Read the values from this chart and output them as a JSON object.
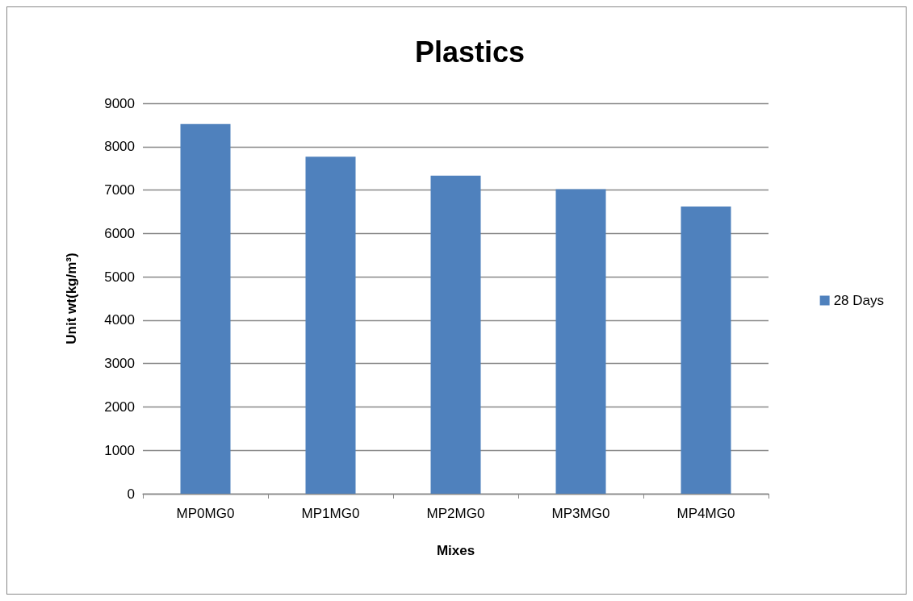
{
  "chart_data": {
    "type": "bar",
    "title": "Plastics",
    "xlabel": "Mixes",
    "ylabel": "Unit wt(kg/m³)",
    "categories": [
      "MP0MG0",
      "MP1MG0",
      "MP2MG0",
      "MP3MG0",
      "MP4MG0"
    ],
    "series": [
      {
        "name": "28 Days",
        "color": "#4f81bd",
        "values": [
          8520,
          7770,
          7330,
          7020,
          6620
        ]
      }
    ],
    "ylim": [
      0,
      9000
    ],
    "yticks": [
      0,
      1000,
      2000,
      3000,
      4000,
      5000,
      6000,
      7000,
      8000,
      9000
    ],
    "grid": "y",
    "legend": "right"
  }
}
